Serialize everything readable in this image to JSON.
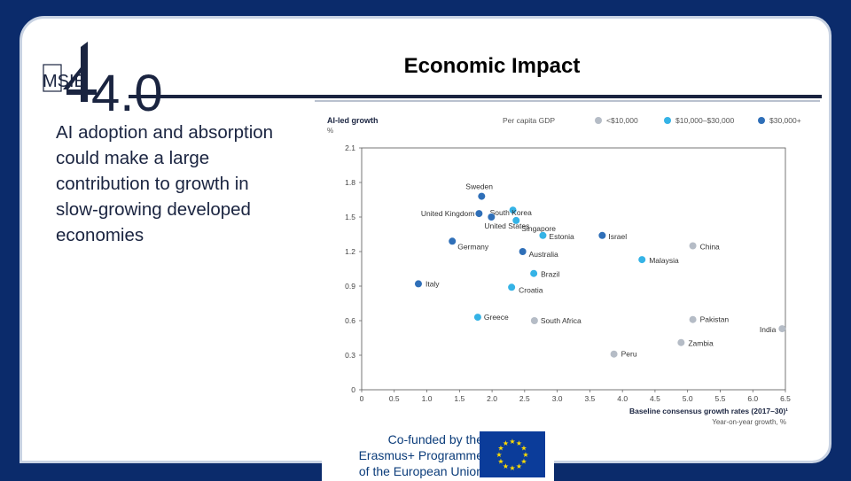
{
  "slide": {
    "title": "Economic Impact",
    "bullet": "AI adoption and absorption could make a large contribution to growth in slow-growing developed economies",
    "logo": {
      "text_left": "MSIE",
      "text_right": "4.0"
    },
    "cofund": {
      "line1": "Co-funded by the",
      "line2": "Erasmus+ Programme",
      "line3": "of the European Union"
    }
  },
  "chart_data": {
    "type": "scatter",
    "ylabel": "AI-led growth",
    "yunit": "%",
    "xlabel": "Baseline consensus growth rates (2017–30)¹",
    "xsublabel": "Year-on-year growth, %",
    "xlim": [
      0,
      6.5
    ],
    "ylim": [
      0,
      2.1
    ],
    "xticks": [
      "0",
      "0.5",
      "1.0",
      "1.5",
      "2.0",
      "2.5",
      "3.0",
      "3.5",
      "4.0",
      "4.5",
      "5.0",
      "5.5",
      "6.0",
      "6.5"
    ],
    "yticks": [
      "0",
      "0.3",
      "0.6",
      "0.9",
      "1.2",
      "1.5",
      "1.8",
      "2.1"
    ],
    "legend": {
      "title": "Per capita GDP",
      "placement": "top",
      "items": [
        {
          "label": "<$10,000",
          "color": "#b5bcc6"
        },
        {
          "label": "$10,000–$30,000",
          "color": "#35b3e6"
        },
        {
          "label": "$30,000+",
          "color": "#2f6fb8"
        }
      ]
    },
    "points": [
      {
        "label": "Sweden",
        "x": 1.84,
        "y": 1.68,
        "group": 2
      },
      {
        "label": "South Korea",
        "x": 2.32,
        "y": 1.56,
        "group": 1
      },
      {
        "label": "United Kingdom",
        "x": 1.8,
        "y": 1.53,
        "group": 2
      },
      {
        "label": "United States",
        "x": 1.99,
        "y": 1.5,
        "group": 2
      },
      {
        "label": "Singapore",
        "x": 2.37,
        "y": 1.47,
        "group": 1
      },
      {
        "label": "Germany",
        "x": 1.39,
        "y": 1.29,
        "group": 2
      },
      {
        "label": "Estonia",
        "x": 2.78,
        "y": 1.34,
        "group": 1
      },
      {
        "label": "Israel",
        "x": 3.69,
        "y": 1.34,
        "group": 2
      },
      {
        "label": "China",
        "x": 5.08,
        "y": 1.25,
        "group": 0
      },
      {
        "label": "Australia",
        "x": 2.47,
        "y": 1.2,
        "group": 2
      },
      {
        "label": "Malaysia",
        "x": 4.3,
        "y": 1.13,
        "group": 1
      },
      {
        "label": "Brazil",
        "x": 2.64,
        "y": 1.01,
        "group": 1
      },
      {
        "label": "Italy",
        "x": 0.87,
        "y": 0.92,
        "group": 2
      },
      {
        "label": "Croatia",
        "x": 2.3,
        "y": 0.89,
        "group": 1
      },
      {
        "label": "Greece",
        "x": 1.78,
        "y": 0.63,
        "group": 1
      },
      {
        "label": "South Africa",
        "x": 2.65,
        "y": 0.6,
        "group": 0
      },
      {
        "label": "Pakistan",
        "x": 5.08,
        "y": 0.61,
        "group": 0
      },
      {
        "label": "India",
        "x": 6.45,
        "y": 0.53,
        "group": 0
      },
      {
        "label": "Zambia",
        "x": 4.9,
        "y": 0.41,
        "group": 0
      },
      {
        "label": "Peru",
        "x": 3.87,
        "y": 0.31,
        "group": 0
      }
    ]
  }
}
